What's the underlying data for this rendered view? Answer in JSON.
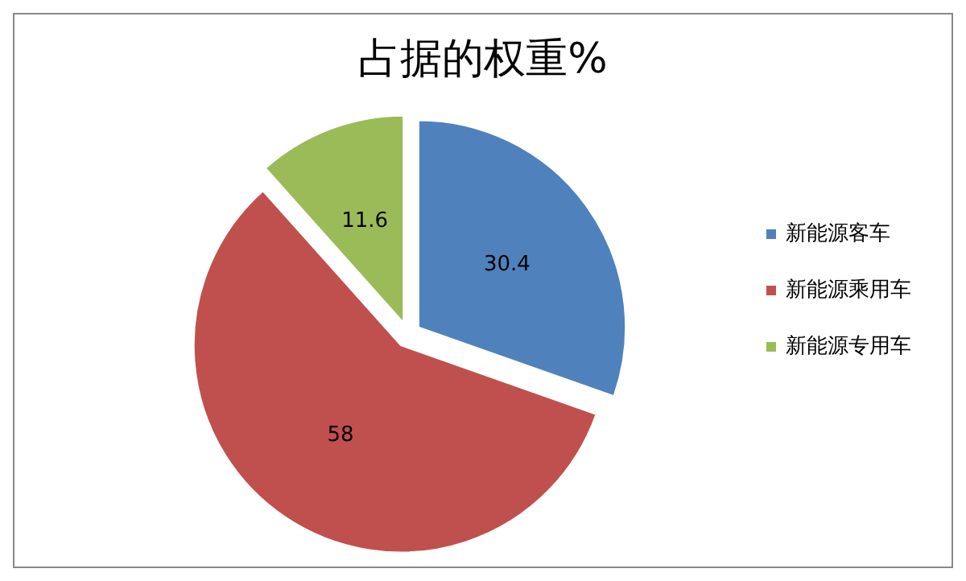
{
  "chart_data": {
    "type": "pie",
    "title": "占据的权重%",
    "categories": [
      "新能源客车",
      "新能源乘用车",
      "新能源专用车"
    ],
    "values": [
      30.4,
      58,
      11.6
    ],
    "colors": [
      "#4f81bd",
      "#c0504d",
      "#9bbb59"
    ],
    "data_labels": true,
    "legend": "right"
  }
}
